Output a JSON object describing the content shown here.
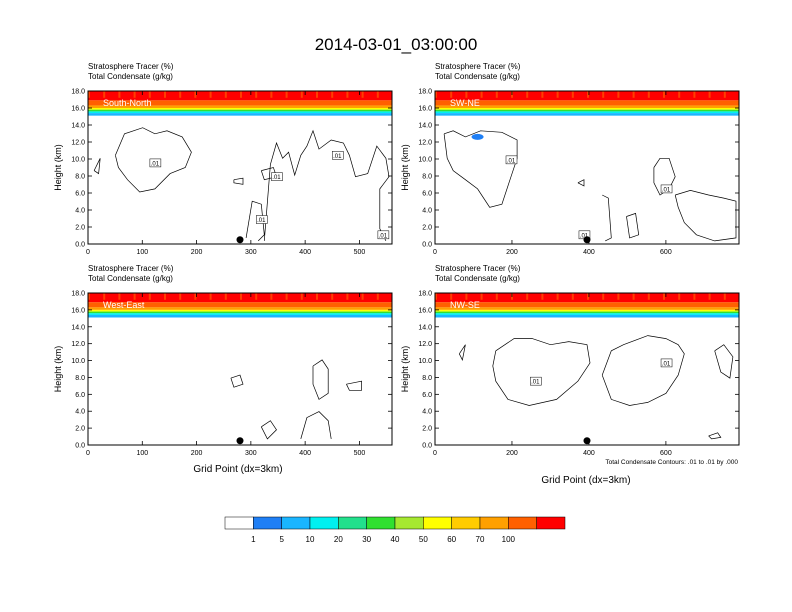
{
  "title": "2014-03-01_03:00:00",
  "ylabel": "Height (km)",
  "xlabel": "Grid Point (dx=3km)",
  "field_label_1": "Stratosphere Tracer   (%)",
  "field_label_2": "Total Condensate   (g/kg)",
  "contour_note": "Total Condensate Contours: .01 to .01 by .000",
  "colorbar": {
    "labels": [
      "1",
      "5",
      "10",
      "20",
      "30",
      "40",
      "50",
      "60",
      "70",
      "100"
    ],
    "colors": [
      "#ffffff",
      "#1f7ff5",
      "#1ab5ff",
      "#00f0f0",
      "#22e08c",
      "#30e030",
      "#a6e830",
      "#ffff00",
      "#ffcc00",
      "#ffa000",
      "#ff6000",
      "#ff0000"
    ]
  },
  "chart_data": [
    {
      "type": "heatmap",
      "panel_label": "South-North",
      "xticks": [
        0,
        100,
        200,
        300,
        400,
        500
      ],
      "xlim": [
        0,
        560
      ],
      "yticks": [
        "0.0",
        "2.0",
        "4.0",
        "6.0",
        "8.0",
        "10.0",
        "12.0",
        "14.0",
        "16.0",
        "18.0"
      ],
      "ylim": [
        0,
        18
      ],
      "contour_labels": [
        ".01",
        ".01",
        ".01",
        ".01",
        ".01"
      ],
      "marker_x": 280
    },
    {
      "type": "heatmap",
      "panel_label": "SW-NE",
      "xticks": [
        0,
        200,
        400,
        600
      ],
      "xlim": [
        0,
        790
      ],
      "yticks": [
        "0.0",
        "2.0",
        "4.0",
        "6.0",
        "8.0",
        "10.0",
        "12.0",
        "14.0",
        "16.0",
        "18.0"
      ],
      "ylim": [
        0,
        18
      ],
      "contour_labels": [
        ".01",
        ".01",
        ".01"
      ],
      "marker_x": 395
    },
    {
      "type": "heatmap",
      "panel_label": "West-East",
      "xticks": [
        0,
        100,
        200,
        300,
        400,
        500
      ],
      "xlim": [
        0,
        560
      ],
      "yticks": [
        "0.0",
        "2.0",
        "4.0",
        "6.0",
        "8.0",
        "10.0",
        "12.0",
        "14.0",
        "16.0",
        "18.0"
      ],
      "ylim": [
        0,
        18
      ],
      "contour_labels": [],
      "marker_x": 280
    },
    {
      "type": "heatmap",
      "panel_label": "NW-SE",
      "xticks": [
        0,
        200,
        400,
        600
      ],
      "xlim": [
        0,
        790
      ],
      "yticks": [
        "0.0",
        "2.0",
        "4.0",
        "6.0",
        "8.0",
        "10.0",
        "12.0",
        "14.0",
        "16.0",
        "18.0"
      ],
      "ylim": [
        0,
        18
      ],
      "contour_labels": [
        ".01",
        ".01"
      ],
      "marker_x": 395
    }
  ]
}
